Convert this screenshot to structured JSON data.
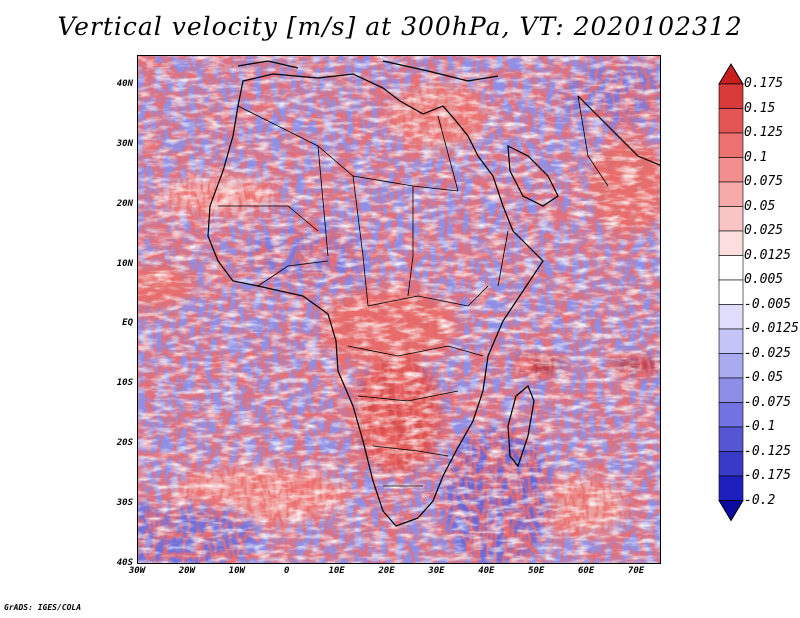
{
  "title": "Vertical velocity [m/s] at 300hPa, VT: 2020102312",
  "credit": "GrADS: IGES/COLA",
  "map": {
    "lon_range": [
      -30,
      75
    ],
    "lat_range": [
      -40,
      45
    ],
    "lat_labels": [
      "40N",
      "30N",
      "20N",
      "10N",
      "EQ",
      "10S",
      "20S",
      "30S",
      "40S"
    ],
    "lat_values": [
      40,
      30,
      20,
      10,
      0,
      -10,
      -20,
      -30,
      -40
    ],
    "lon_labels": [
      "30W",
      "20W",
      "10W",
      "0",
      "10E",
      "20E",
      "30E",
      "40E",
      "50E",
      "60E",
      "70E"
    ],
    "lon_values": [
      -30,
      -20,
      -10,
      0,
      10,
      20,
      30,
      40,
      50,
      60,
      70
    ]
  },
  "colorbar": {
    "labels": [
      "0.175",
      "0.15",
      "0.125",
      "0.1",
      "0.075",
      "0.05",
      "0.025",
      "0.0125",
      "0.005",
      "-0.005",
      "-0.0125",
      "-0.025",
      "-0.05",
      "-0.075",
      "-0.1",
      "-0.125",
      "-0.175",
      "-0.2"
    ],
    "colors": [
      "#c81e1e",
      "#d83a3a",
      "#e45656",
      "#ec7272",
      "#f28e8e",
      "#f6aaaa",
      "#f9c4c4",
      "#fcdede",
      "#ffffff",
      "#ffffff",
      "#dedefc",
      "#c4c4f6",
      "#aaaaf0",
      "#8e8ee8",
      "#7272e0",
      "#5656d4",
      "#3a3ac8",
      "#1e1ebc",
      "#0a0aa0"
    ]
  }
}
